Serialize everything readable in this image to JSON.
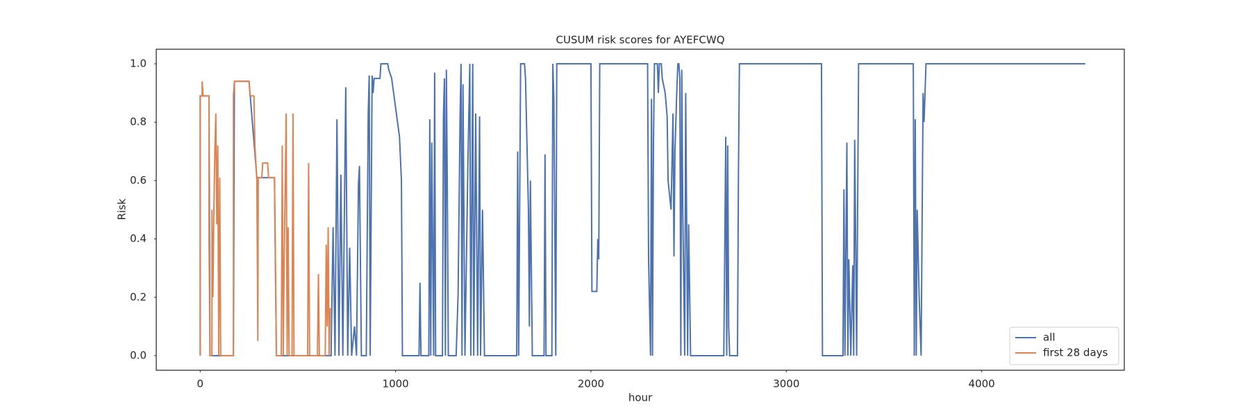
{
  "chart_data": {
    "type": "line",
    "title": "CUSUM risk scores for AYEFCWQ",
    "xlabel": "hour",
    "ylabel": "Risk",
    "xlim": [
      -225,
      4730
    ],
    "ylim": [
      -0.05,
      1.05
    ],
    "xticks": [
      0,
      1000,
      2000,
      3000,
      4000
    ],
    "yticks": [
      {
        "value": 0,
        "label": "0.0"
      },
      0.2,
      0.4,
      0.6,
      0.8,
      {
        "value": 1,
        "label": "1.0"
      }
    ],
    "legend": "lower right",
    "grid": false,
    "series": [
      {
        "name": "all",
        "color": "#4c72b0",
        "x": [
          0,
          0,
          45,
          50,
          170,
          175,
          250,
          290,
          380,
          390,
          660,
          670,
          680,
          690,
          700,
          710,
          720,
          730,
          745,
          755,
          765,
          775,
          790,
          800,
          810,
          815,
          825,
          850,
          860,
          865,
          870,
          880,
          885,
          890,
          920,
          925,
          960,
          965,
          980,
          990,
          1000,
          1010,
          1020,
          1030,
          1035,
          1120,
          1125,
          1130,
          1170,
          1175,
          1180,
          1185,
          1195,
          1200,
          1205,
          1240,
          1245,
          1250,
          1255,
          1260,
          1265,
          1270,
          1310,
          1320,
          1330,
          1335,
          1340,
          1345,
          1355,
          1370,
          1380,
          1385,
          1395,
          1400,
          1410,
          1420,
          1430,
          1435,
          1445,
          1455,
          1620,
          1625,
          1630,
          1640,
          1660,
          1665,
          1680,
          1685,
          1690,
          1700,
          1760,
          1765,
          1770,
          1800,
          1805,
          1810,
          1820,
          1825,
          2000,
          2005,
          2030,
          2035,
          2040,
          2045,
          2290,
          2295,
          2305,
          2310,
          2315,
          2320,
          2325,
          2340,
          2345,
          2350,
          2360,
          2365,
          2380,
          2390,
          2395,
          2410,
          2420,
          2425,
          2430,
          2440,
          2445,
          2450,
          2455,
          2460,
          2465,
          2470,
          2480,
          2485,
          2495,
          2500,
          2510,
          2680,
          2690,
          2695,
          2700,
          2705,
          2710,
          2750,
          2755,
          2760,
          3180,
          3185,
          3290,
          3295,
          3300,
          3310,
          3315,
          3320,
          3330,
          3340,
          3345,
          3350,
          3355,
          3360,
          3370,
          3650,
          3655,
          3660,
          3665,
          3670,
          3680,
          3690,
          3700,
          3705,
          3715,
          4530
        ],
        "values": [
          0,
          0.89,
          0.89,
          0,
          0,
          0.94,
          0.94,
          0.61,
          0.61,
          0,
          0,
          0,
          0.44,
          0,
          0.81,
          0,
          0.62,
          0,
          0.92,
          0,
          0.37,
          0,
          0.1,
          0,
          0.59,
          0.65,
          0,
          0,
          0.83,
          0.96,
          0,
          0.96,
          0.9,
          0.95,
          0.95,
          1,
          1,
          0.98,
          0.95,
          0.9,
          0.85,
          0.8,
          0.75,
          0.6,
          0,
          0,
          0.25,
          0,
          0,
          0.81,
          0,
          0.73,
          0,
          0.97,
          0,
          0,
          0.82,
          0.95,
          0,
          0.98,
          0.56,
          0,
          0,
          0.21,
          0.81,
          1,
          0,
          0.93,
          0,
          0.65,
          1,
          0,
          1,
          0,
          0.83,
          0,
          0.82,
          0,
          0.5,
          0,
          0,
          0.7,
          0,
          1,
          1,
          0.95,
          0.5,
          0.1,
          0.6,
          0,
          0,
          0.69,
          0,
          0,
          1,
          0.88,
          0,
          1,
          1,
          0.22,
          0.22,
          0.4,
          0.33,
          1,
          1,
          0.33,
          0,
          0.88,
          0,
          0.73,
          1,
          1,
          0.9,
          1,
          1,
          0.95,
          0.9,
          0.82,
          0.6,
          0.5,
          0.83,
          0.34,
          0.7,
          0.92,
          1,
          1,
          0.95,
          0,
          0.98,
          0.5,
          0,
          0.9,
          0,
          0.45,
          0,
          0,
          0.75,
          0,
          0.72,
          0.1,
          0,
          0,
          0.63,
          1,
          1,
          0,
          0,
          0.57,
          0,
          0.73,
          0,
          0.33,
          0,
          0.31,
          0,
          0.74,
          0.39,
          0,
          1,
          1,
          0,
          0.81,
          0,
          0.5,
          0.2,
          0,
          0.9,
          0.8,
          1,
          1
        ]
      },
      {
        "name": "first 28 days",
        "color": "#dd8452",
        "x": [
          0,
          0,
          10,
          10,
          15,
          45,
          45,
          50,
          60,
          60,
          65,
          70,
          75,
          80,
          85,
          90,
          95,
          100,
          105,
          170,
          170,
          175,
          250,
          255,
          275,
          280,
          290,
          295,
          297,
          315,
          320,
          345,
          350,
          380,
          385,
          390,
          415,
          420,
          425,
          430,
          440,
          445,
          450,
          455,
          470,
          475,
          480,
          550,
          555,
          560,
          600,
          605,
          610,
          640,
          645,
          650,
          655,
          660,
          665,
          672
        ],
        "values": [
          0,
          0.89,
          0.89,
          0.94,
          0.89,
          0.89,
          0.4,
          0,
          0,
          0.5,
          0.2,
          0.5,
          0.7,
          0.83,
          0.45,
          0.72,
          0,
          0.61,
          0,
          0,
          0.89,
          0.94,
          0.94,
          0.89,
          0.89,
          0.72,
          0.6,
          0.05,
          0.61,
          0.61,
          0.66,
          0.66,
          0.61,
          0.61,
          0.34,
          0,
          0,
          0.72,
          0,
          0.33,
          0.83,
          0,
          0.44,
          0,
          0,
          0.83,
          0,
          0,
          0.66,
          0,
          0,
          0.28,
          0,
          0,
          0.38,
          0.1,
          0.44,
          0,
          0.16,
          0.16
        ]
      }
    ]
  }
}
